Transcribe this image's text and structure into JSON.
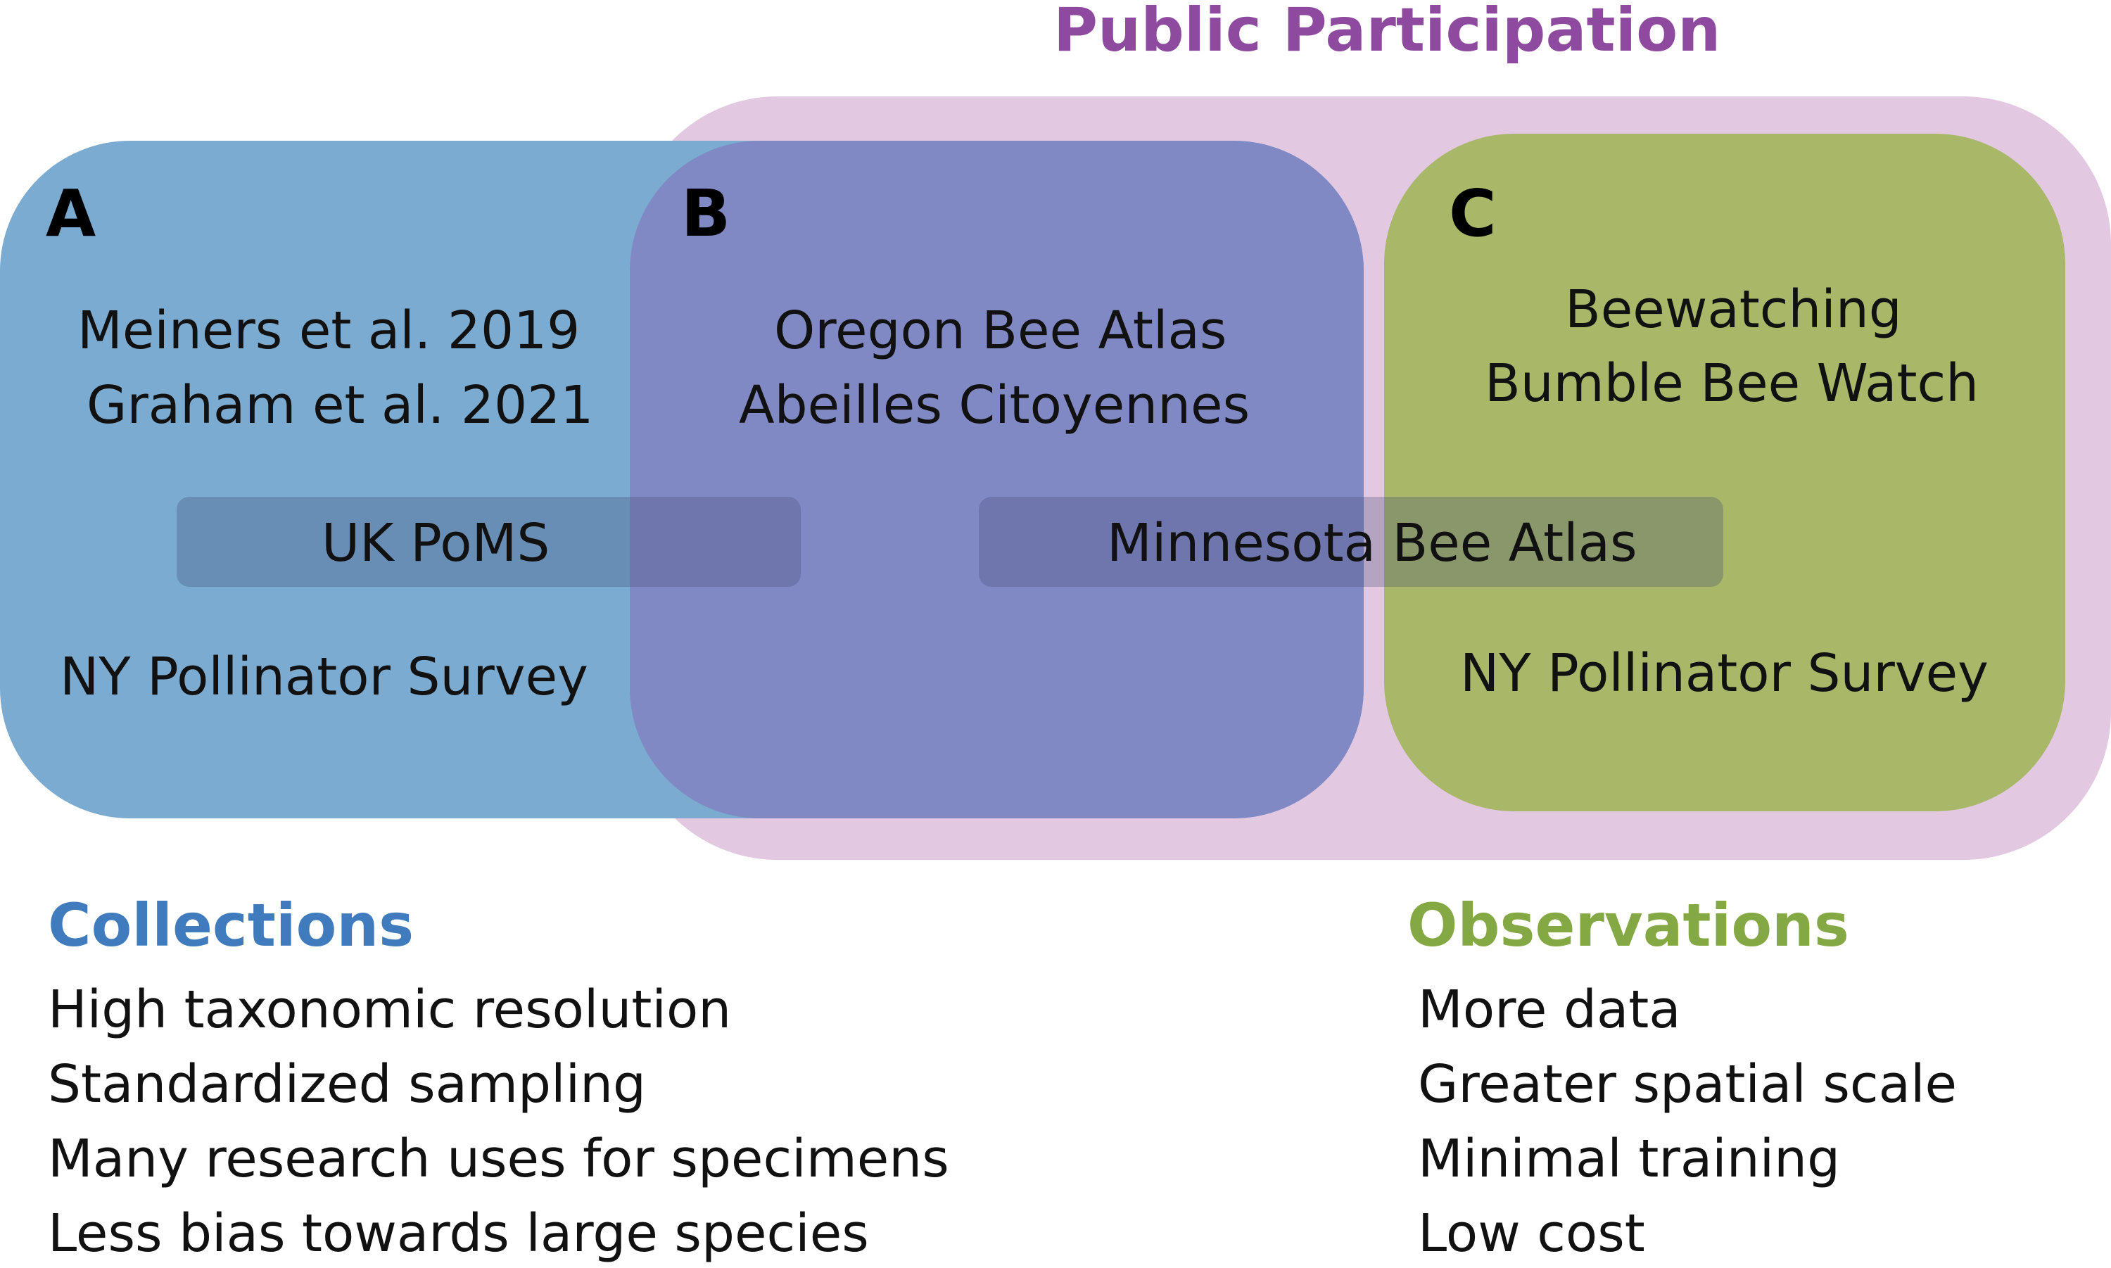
{
  "colors": {
    "public_participation": "#8e4a9e",
    "public_participation_fill": "#e3c8e2",
    "collections": "#3f7bbd",
    "collections_fill": "#7babd0",
    "observations": "#84a843",
    "observations_fill": "#a8b768",
    "overlap_fill": "#8189c5"
  },
  "title": "Public Participation",
  "regions": {
    "a": {
      "letter": "A",
      "items": [
        "Meiners et al. 2019",
        "Graham et al. 2021"
      ],
      "bottom_item": "NY Pollinator Survey"
    },
    "b": {
      "letter": "B",
      "items": [
        "Oregon Bee Atlas",
        "Abeilles Citoyennes"
      ]
    },
    "c": {
      "letter": "C",
      "items": [
        "Beewatching",
        "Bumble Bee Watch"
      ],
      "bottom_item": "NY Pollinator Survey"
    }
  },
  "spanning_labels": {
    "ab": "UK PoMS",
    "bc": "Minnesota Bee Atlas"
  },
  "collections": {
    "heading": "Collections",
    "items": [
      "High taxonomic resolution",
      "Standardized sampling",
      "Many research uses for specimens",
      "Less bias towards large species"
    ]
  },
  "observations": {
    "heading": "Observations",
    "items": [
      "More data",
      "Greater spatial scale",
      "Minimal training",
      "Low cost"
    ]
  }
}
